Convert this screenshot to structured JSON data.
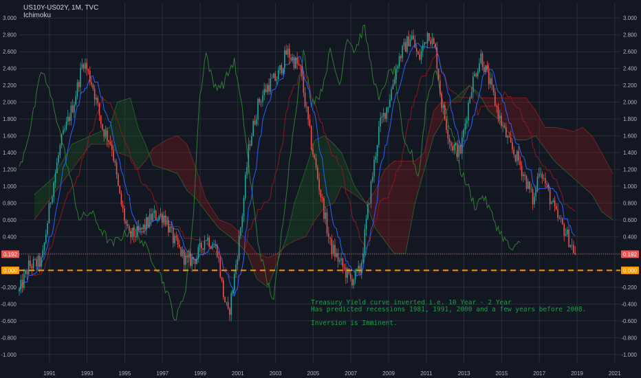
{
  "header": {
    "title": "US10Y-US02Y, 1M, TVC",
    "indicator": "Ichimoku"
  },
  "annotation": {
    "line1": "Treasury Yield curve inverted i.e. 10 Year - 2 Year",
    "line2": "Has predicted recessions 1981, 1991, 2000 and a few years before 2008.",
    "line3": "Inversion is Imminent."
  },
  "colors": {
    "background": "#131722",
    "grid": "#2a2e39",
    "up": "#26a69a",
    "down": "#ef5350",
    "conversion_line": "#2962ff",
    "base_line": "#8b1a1a",
    "lagging_span": "#2e7d32",
    "cloud_bull": "#1b5e20",
    "cloud_bear": "#8b1a1a",
    "current_price_line": "#ef5350",
    "zero_line": "#ff9800",
    "annotation_text": "#1e9c4c"
  },
  "chart_data": {
    "type": "candlestick",
    "title": "US10Y-US02Y, 1M, TVC",
    "indicator": "Ichimoku",
    "x_range": [
      1989.4,
      2021.3
    ],
    "ylim": [
      -1.1,
      3.1
    ],
    "x_ticks": [
      "1991",
      "1993",
      "1995",
      "1997",
      "1999",
      "2001",
      "2003",
      "2005",
      "2007",
      "2009",
      "2011",
      "2013",
      "2015",
      "2017",
      "2019",
      "2021"
    ],
    "y_ticks": [
      "3.000",
      "2.800",
      "2.600",
      "2.400",
      "2.200",
      "2.000",
      "1.800",
      "1.600",
      "1.400",
      "1.200",
      "1.000",
      "0.800",
      "0.600",
      "0.400",
      "0.200",
      "0.000",
      "-0.200",
      "-0.400",
      "-0.600",
      "-0.800",
      "-1.000"
    ],
    "grid": true,
    "current_value": 0.192,
    "current_label": "0.192",
    "zero_label": "0.000",
    "price_anchors": [
      [
        1989.4,
        -0.25
      ],
      [
        1989.9,
        0.05
      ],
      [
        1990.6,
        0.1
      ],
      [
        1991.1,
        0.9
      ],
      [
        1991.6,
        1.5
      ],
      [
        1992.3,
        2.0
      ],
      [
        1992.8,
        2.5
      ],
      [
        1993.3,
        2.2
      ],
      [
        1993.8,
        1.7
      ],
      [
        1994.3,
        1.5
      ],
      [
        1994.7,
        0.9
      ],
      [
        1995.0,
        0.6
      ],
      [
        1995.2,
        0.4
      ],
      [
        1995.8,
        0.45
      ],
      [
        1996.5,
        0.65
      ],
      [
        1997.1,
        0.65
      ],
      [
        1997.6,
        0.35
      ],
      [
        1998.3,
        0.1
      ],
      [
        1998.8,
        0.15
      ],
      [
        1999.3,
        0.4
      ],
      [
        1999.9,
        0.25
      ],
      [
        2000.2,
        -0.25
      ],
      [
        2000.5,
        -0.55
      ],
      [
        2000.8,
        -0.1
      ],
      [
        2001.2,
        0.6
      ],
      [
        2001.6,
        1.5
      ],
      [
        2002.1,
        2.0
      ],
      [
        2002.6,
        2.2
      ],
      [
        2003.1,
        2.3
      ],
      [
        2003.6,
        2.6
      ],
      [
        2004.3,
        2.4
      ],
      [
        2004.9,
        1.5
      ],
      [
        2005.4,
        0.9
      ],
      [
        2005.9,
        0.3
      ],
      [
        2006.4,
        0.1
      ],
      [
        2007.0,
        -0.12
      ],
      [
        2007.5,
        0.0
      ],
      [
        2008.0,
        0.9
      ],
      [
        2008.5,
        1.7
      ],
      [
        2009.0,
        2.0
      ],
      [
        2009.5,
        2.5
      ],
      [
        2010.2,
        2.8
      ],
      [
        2010.6,
        2.5
      ],
      [
        2011.1,
        2.85
      ],
      [
        2011.5,
        2.6
      ],
      [
        2011.8,
        2.0
      ],
      [
        2012.3,
        1.5
      ],
      [
        2012.8,
        1.4
      ],
      [
        2013.4,
        2.2
      ],
      [
        2013.9,
        2.55
      ],
      [
        2014.4,
        2.2
      ],
      [
        2014.9,
        1.8
      ],
      [
        2015.4,
        1.5
      ],
      [
        2015.9,
        1.3
      ],
      [
        2016.4,
        1.0
      ],
      [
        2016.7,
        0.8
      ],
      [
        2017.0,
        1.25
      ],
      [
        2017.5,
        0.9
      ],
      [
        2017.9,
        0.65
      ],
      [
        2018.4,
        0.45
      ],
      [
        2018.8,
        0.25
      ],
      [
        2018.95,
        0.192
      ]
    ],
    "lagging_anchors": [
      [
        1989.4,
        1.2
      ],
      [
        1990.0,
        1.7
      ],
      [
        1990.6,
        2.4
      ],
      [
        1991.3,
        1.9
      ],
      [
        1992.0,
        1.2
      ],
      [
        1992.6,
        0.6
      ],
      [
        1993.2,
        0.7
      ],
      [
        1993.7,
        0.5
      ],
      [
        1994.3,
        0.3
      ],
      [
        1994.8,
        0.4
      ],
      [
        1995.5,
        0.5
      ],
      [
        1996.3,
        0.2
      ],
      [
        1996.8,
        0.0
      ],
      [
        1997.3,
        -0.3
      ],
      [
        1997.7,
        -0.6
      ],
      [
        1998.2,
        -0.25
      ],
      [
        1998.6,
        0.5
      ],
      [
        1998.95,
        2.0
      ],
      [
        1999.3,
        2.6
      ],
      [
        1999.7,
        2.2
      ],
      [
        2000.2,
        2.2
      ],
      [
        2000.8,
        2.5
      ],
      [
        2001.3,
        1.8
      ],
      [
        2001.7,
        1.0
      ],
      [
        2002.1,
        0.3
      ],
      [
        2002.5,
        -0.1
      ],
      [
        2002.9,
        -0.35
      ],
      [
        2003.2,
        0.2
      ],
      [
        2003.6,
        1.0
      ],
      [
        2004.0,
        1.8
      ],
      [
        2004.5,
        2.6
      ],
      [
        2004.9,
        2.0
      ],
      [
        2005.4,
        2.1
      ],
      [
        2005.9,
        2.6
      ],
      [
        2006.4,
        2.2
      ],
      [
        2006.8,
        2.8
      ],
      [
        2007.2,
        2.6
      ],
      [
        2007.7,
        2.9
      ],
      [
        2008.1,
        2.4
      ],
      [
        2008.5,
        2.0
      ],
      [
        2008.9,
        2.3
      ],
      [
        2009.3,
        2.4
      ],
      [
        2009.8,
        1.5
      ],
      [
        2010.2,
        1.4
      ],
      [
        2010.6,
        1.1
      ],
      [
        2011.0,
        2.0
      ],
      [
        2011.5,
        2.4
      ],
      [
        2012.0,
        1.9
      ],
      [
        2012.4,
        1.6
      ],
      [
        2012.8,
        1.2
      ],
      [
        2013.2,
        1.0
      ],
      [
        2013.6,
        0.75
      ],
      [
        2014.0,
        0.9
      ],
      [
        2014.4,
        0.7
      ],
      [
        2014.8,
        0.5
      ],
      [
        2015.2,
        0.35
      ],
      [
        2015.6,
        0.22
      ],
      [
        2016.0,
        0.35
      ]
    ],
    "cloud_anchors": [
      [
        1990.2,
        0.9,
        0.6
      ],
      [
        1991.2,
        1.1,
        0.9
      ],
      [
        1992.2,
        1.5,
        1.2
      ],
      [
        1993.2,
        1.6,
        1.5
      ],
      [
        1994.2,
        1.7,
        1.5
      ],
      [
        1994.6,
        2.0,
        1.4
      ],
      [
        1995.3,
        2.05,
        1.35
      ],
      [
        1995.7,
        1.7,
        1.2
      ],
      [
        1996.1,
        1.5,
        1.3
      ],
      [
        1996.5,
        1.25,
        1.45
      ],
      [
        1997.2,
        1.2,
        1.55
      ],
      [
        1997.8,
        1.15,
        1.6
      ],
      [
        1998.3,
        0.95,
        1.5
      ],
      [
        1998.8,
        0.85,
        1.2
      ],
      [
        1999.3,
        0.7,
        0.85
      ],
      [
        2000.0,
        0.5,
        0.6
      ],
      [
        2000.6,
        0.4,
        0.55
      ],
      [
        2001.1,
        0.3,
        0.45
      ],
      [
        2001.5,
        0.2,
        0.35
      ],
      [
        2002.0,
        -0.1,
        0.2
      ],
      [
        2002.6,
        -0.2,
        0.15
      ],
      [
        2003.1,
        0.1,
        0.2
      ],
      [
        2003.6,
        0.4,
        0.3
      ],
      [
        2004.0,
        0.8,
        0.35
      ],
      [
        2004.6,
        1.2,
        0.4
      ],
      [
        2005.1,
        1.55,
        0.6
      ],
      [
        2005.6,
        1.6,
        0.75
      ],
      [
        2006.1,
        1.5,
        0.8
      ],
      [
        2006.5,
        1.4,
        1.0
      ],
      [
        2007.2,
        1.0,
        0.9
      ],
      [
        2007.8,
        0.8,
        0.8
      ],
      [
        2008.3,
        0.5,
        0.95
      ],
      [
        2008.8,
        0.35,
        1.2
      ],
      [
        2009.3,
        0.2,
        1.3
      ],
      [
        2009.9,
        0.2,
        1.3
      ],
      [
        2010.4,
        0.8,
        1.3
      ],
      [
        2010.9,
        1.2,
        1.4
      ],
      [
        2011.4,
        1.6,
        1.9
      ],
      [
        2011.8,
        1.75,
        2.0
      ],
      [
        2012.3,
        2.0,
        2.0
      ],
      [
        2012.8,
        2.1,
        2.0
      ],
      [
        2013.3,
        2.2,
        2.2
      ],
      [
        2013.8,
        2.1,
        2.05
      ],
      [
        2014.3,
        1.9,
        2.05
      ],
      [
        2014.8,
        1.8,
        2.05
      ],
      [
        2015.3,
        1.65,
        2.05
      ],
      [
        2015.8,
        1.55,
        2.05
      ],
      [
        2016.3,
        1.55,
        2.05
      ],
      [
        2016.8,
        1.6,
        1.9
      ],
      [
        2017.3,
        1.45,
        1.7
      ],
      [
        2017.8,
        1.3,
        1.7
      ],
      [
        2018.3,
        1.2,
        1.68
      ],
      [
        2018.8,
        1.1,
        1.65
      ],
      [
        2019.3,
        1.0,
        1.7
      ],
      [
        2019.8,
        0.9,
        1.6
      ],
      [
        2020.3,
        0.7,
        1.4
      ],
      [
        2020.9,
        0.6,
        1.15
      ]
    ]
  }
}
